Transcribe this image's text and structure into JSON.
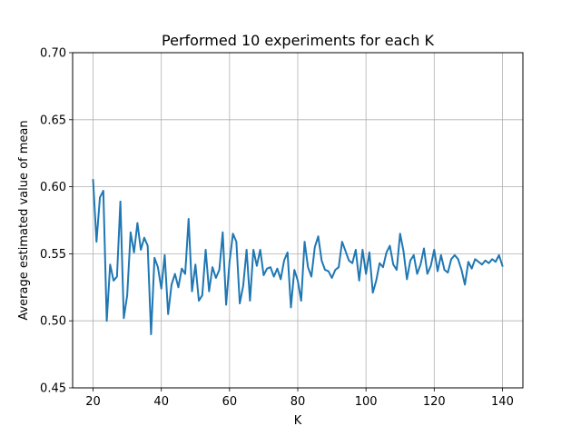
{
  "chart_data": {
    "type": "line",
    "title": "Performed 10 experiments for each K",
    "xlabel": "K",
    "ylabel": "Average estimated value of mean",
    "xlim": [
      14,
      146
    ],
    "ylim": [
      0.45,
      0.7
    ],
    "grid": true,
    "xticks": [
      20,
      40,
      60,
      80,
      100,
      120,
      140
    ],
    "yticks": [
      0.45,
      0.5,
      0.55,
      0.6,
      0.65,
      0.7
    ],
    "xtick_labels": [
      "20",
      "40",
      "60",
      "80",
      "100",
      "120",
      "140"
    ],
    "ytick_labels": [
      "0.45",
      "0.50",
      "0.55",
      "0.60",
      "0.65",
      "0.70"
    ],
    "color": "#1f77b4",
    "series": [
      {
        "x": [
          20,
          21,
          22,
          23,
          24,
          25,
          26,
          27,
          28,
          29,
          30,
          31,
          32,
          33,
          34,
          35,
          36,
          37,
          38,
          39,
          40,
          41,
          42,
          43,
          44,
          45,
          46,
          47,
          48,
          49,
          50,
          51,
          52,
          53,
          54,
          55,
          56,
          57,
          58,
          59,
          60,
          61,
          62,
          63,
          64,
          65,
          66,
          67,
          68,
          69,
          70,
          71,
          72,
          73,
          74,
          75,
          76,
          77,
          78,
          79,
          80,
          81,
          82,
          83,
          84,
          85,
          86,
          87,
          88,
          89,
          90,
          91,
          92,
          93,
          94,
          95,
          96,
          97,
          98,
          99,
          100,
          101,
          102,
          103,
          104,
          105,
          106,
          107,
          108,
          109,
          110,
          111,
          112,
          113,
          114,
          115,
          116,
          117,
          118,
          119,
          120,
          121,
          122,
          123,
          124,
          125,
          126,
          127,
          128,
          129,
          130,
          131,
          132,
          133,
          134,
          135,
          136,
          137,
          138,
          139,
          140
        ],
        "values": [
          0.605,
          0.559,
          0.592,
          0.597,
          0.5,
          0.542,
          0.53,
          0.533,
          0.589,
          0.502,
          0.519,
          0.566,
          0.551,
          0.573,
          0.553,
          0.562,
          0.556,
          0.49,
          0.547,
          0.54,
          0.524,
          0.549,
          0.505,
          0.527,
          0.535,
          0.525,
          0.539,
          0.535,
          0.576,
          0.522,
          0.542,
          0.515,
          0.519,
          0.553,
          0.522,
          0.54,
          0.532,
          0.538,
          0.566,
          0.512,
          0.544,
          0.565,
          0.559,
          0.513,
          0.526,
          0.553,
          0.515,
          0.553,
          0.541,
          0.553,
          0.534,
          0.539,
          0.54,
          0.533,
          0.539,
          0.531,
          0.545,
          0.551,
          0.51,
          0.538,
          0.53,
          0.515,
          0.559,
          0.54,
          0.533,
          0.555,
          0.563,
          0.545,
          0.538,
          0.537,
          0.532,
          0.538,
          0.54,
          0.559,
          0.552,
          0.545,
          0.543,
          0.553,
          0.53,
          0.553,
          0.535,
          0.551,
          0.521,
          0.53,
          0.543,
          0.54,
          0.551,
          0.556,
          0.542,
          0.538,
          0.565,
          0.552,
          0.531,
          0.545,
          0.549,
          0.535,
          0.542,
          0.554,
          0.535,
          0.541,
          0.553,
          0.537,
          0.549,
          0.538,
          0.536,
          0.546,
          0.549,
          0.546,
          0.538,
          0.527,
          0.544,
          0.539,
          0.546,
          0.544,
          0.542,
          0.545,
          0.543,
          0.546,
          0.544,
          0.549,
          0.541
        ]
      }
    ]
  }
}
